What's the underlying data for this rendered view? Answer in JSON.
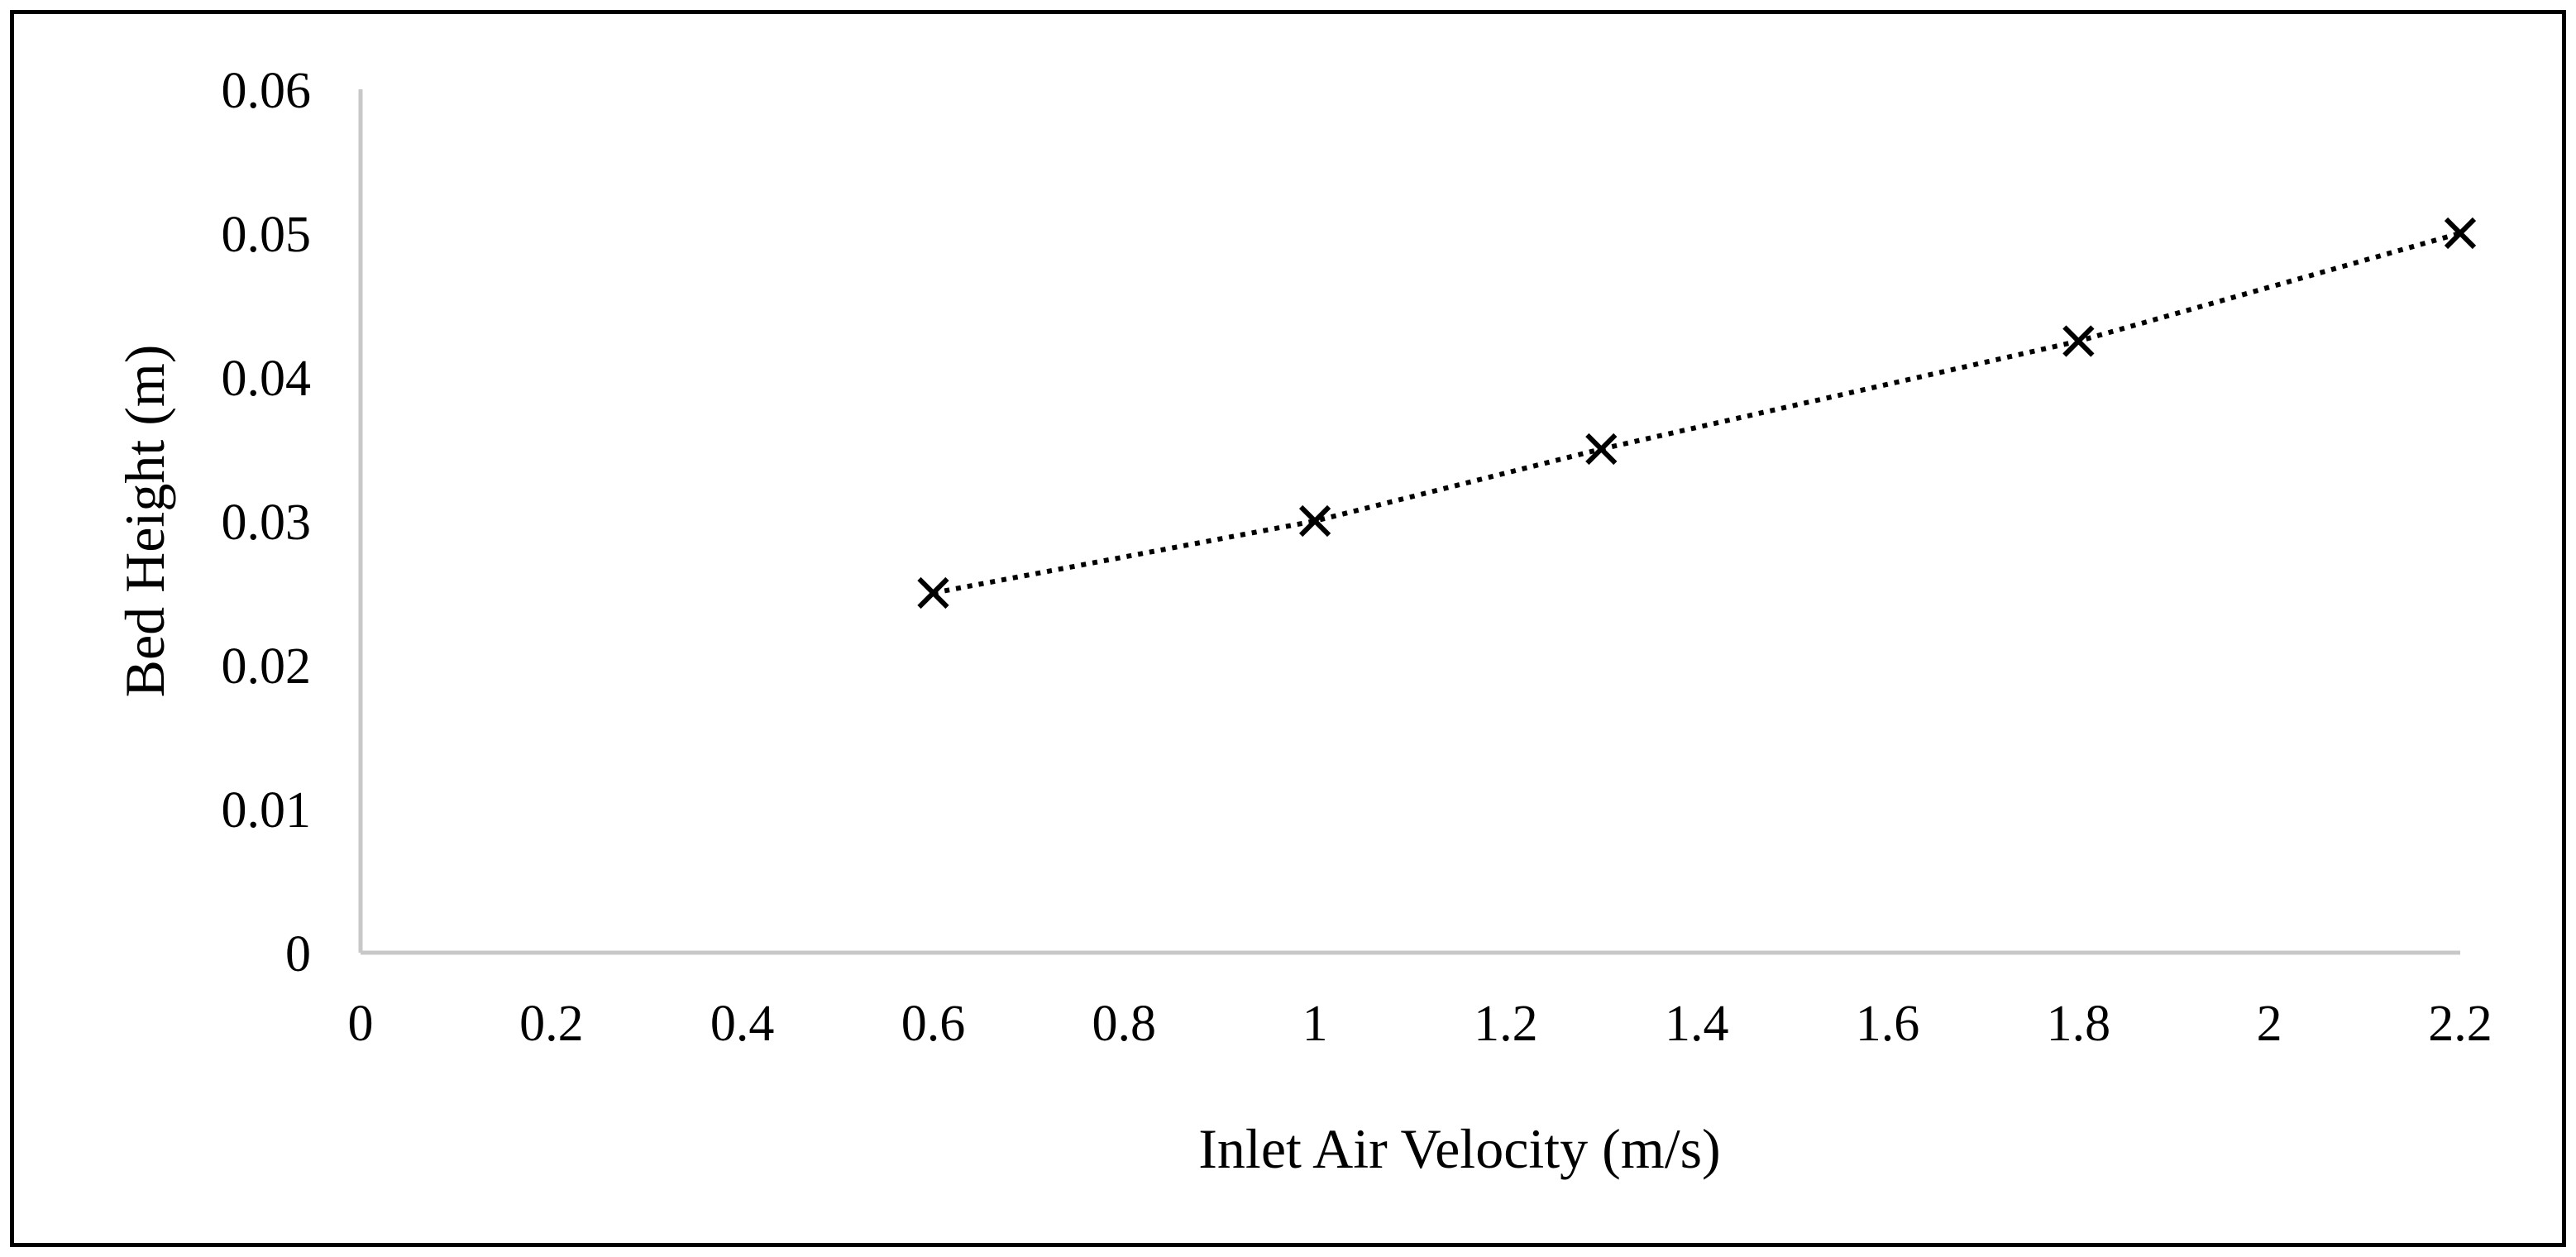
{
  "chart_data": {
    "type": "scatter",
    "title": "",
    "xlabel": "Inlet Air Velocity (m/s)",
    "ylabel": "Bed Height (m)",
    "xlim": [
      0,
      2.2
    ],
    "ylim": [
      0,
      0.06
    ],
    "x_ticks": [
      0,
      0.2,
      0.4,
      0.6,
      0.8,
      1,
      1.2,
      1.4,
      1.6,
      1.8,
      2,
      2.2
    ],
    "x_tick_labels": [
      "0",
      "0.2",
      "0.4",
      "0.6",
      "0.8",
      "1",
      "1.2",
      "1.4",
      "1.6",
      "1.8",
      "2",
      "2.2"
    ],
    "y_ticks": [
      0,
      0.01,
      0.02,
      0.03,
      0.04,
      0.05,
      0.06
    ],
    "y_tick_labels": [
      "0",
      "0.01",
      "0.02",
      "0.03",
      "0.04",
      "0.05",
      "0.06"
    ],
    "grid": false,
    "legend": "none",
    "series": [
      {
        "name": "Bed Height",
        "marker": "x",
        "line_style": "dotted",
        "color": "#000000",
        "x": [
          0.6,
          1.0,
          1.3,
          1.8,
          2.2
        ],
        "y": [
          0.025,
          0.03,
          0.035,
          0.0425,
          0.05
        ]
      }
    ]
  },
  "colors": {
    "axis": "#c8c8c8",
    "frame": "#000000",
    "text": "#000000"
  }
}
